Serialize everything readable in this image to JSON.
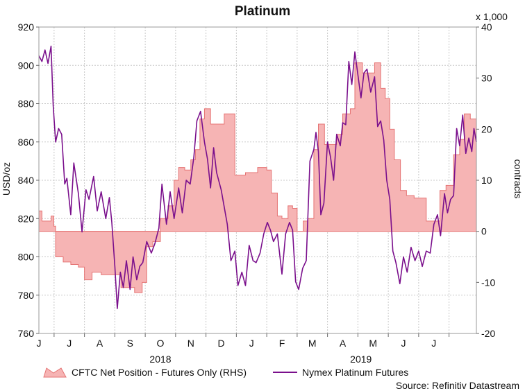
{
  "chart_data": {
    "type": "area+line",
    "title": "Platinum",
    "ylabel_left": "USD/oz",
    "ylabel_right": "contracts",
    "right_axis_multiplier": "x 1,000",
    "source": "Source: Refinitiv Datastream",
    "left_axis": {
      "min": 760,
      "max": 920,
      "ticks": [
        760,
        780,
        800,
        820,
        840,
        860,
        880,
        900,
        920
      ]
    },
    "right_axis": {
      "min": -20,
      "max": 40,
      "ticks": [
        -20,
        -10,
        0,
        10,
        20,
        30,
        40
      ]
    },
    "x_axis": {
      "start_month": 5.5,
      "end_month": 19.9,
      "month_labels": [
        {
          "m": 6,
          "label": "J"
        },
        {
          "m": 7,
          "label": "J"
        },
        {
          "m": 8,
          "label": "A"
        },
        {
          "m": 9,
          "label": "S"
        },
        {
          "m": 10,
          "label": "O"
        },
        {
          "m": 11,
          "label": "N"
        },
        {
          "m": 12,
          "label": "D"
        },
        {
          "m": 13,
          "label": "J"
        },
        {
          "m": 14,
          "label": "F"
        },
        {
          "m": 15,
          "label": "M"
        },
        {
          "m": 16,
          "label": "A"
        },
        {
          "m": 17,
          "label": "M"
        },
        {
          "m": 18,
          "label": "J"
        },
        {
          "m": 19,
          "label": "J"
        }
      ],
      "year_labels": [
        {
          "m": 9.5,
          "label": "2018"
        },
        {
          "m": 16.1,
          "label": "2019"
        }
      ]
    },
    "legend": [
      "CFTC Net Position - Futures Only (RHS)",
      "Nymex Platinum Futures"
    ],
    "colors": {
      "area_fill": "#f6b4b4",
      "area_stroke": "#e57373",
      "line": "#7a0f8c"
    },
    "series": [
      {
        "name": "CFTC Net Position - Futures Only (RHS)",
        "axis": "right",
        "units": "thousand contracts",
        "points": [
          [
            5.5,
            4
          ],
          [
            5.6,
            2
          ],
          [
            5.75,
            2
          ],
          [
            5.9,
            3
          ],
          [
            5.99,
            1
          ],
          [
            6.05,
            -5
          ],
          [
            6.3,
            -6
          ],
          [
            6.55,
            -6.5
          ],
          [
            6.8,
            -7
          ],
          [
            7.0,
            -9.5
          ],
          [
            7.25,
            -8
          ],
          [
            7.4,
            -8
          ],
          [
            7.55,
            -8.5
          ],
          [
            7.8,
            -8.5
          ],
          [
            8.0,
            -8.5
          ],
          [
            8.2,
            -11
          ],
          [
            8.45,
            -11
          ],
          [
            8.65,
            -12
          ],
          [
            8.9,
            -10
          ],
          [
            9.05,
            -3
          ],
          [
            9.25,
            -2
          ],
          [
            9.5,
            2.5
          ],
          [
            9.75,
            5
          ],
          [
            9.95,
            10
          ],
          [
            10.1,
            12.5
          ],
          [
            10.3,
            12
          ],
          [
            10.5,
            14
          ],
          [
            10.65,
            16
          ],
          [
            10.8,
            22
          ],
          [
            10.95,
            24
          ],
          [
            11.15,
            21
          ],
          [
            11.4,
            21
          ],
          [
            11.6,
            23
          ],
          [
            11.8,
            23
          ],
          [
            11.95,
            11
          ],
          [
            12.15,
            11
          ],
          [
            12.3,
            11.5
          ],
          [
            12.5,
            11.5
          ],
          [
            12.7,
            12.5
          ],
          [
            12.85,
            12.5
          ],
          [
            13.0,
            12
          ],
          [
            13.15,
            7.5
          ],
          [
            13.35,
            3
          ],
          [
            13.5,
            2.5
          ],
          [
            13.7,
            5
          ],
          [
            13.85,
            4.5
          ],
          [
            14.0,
            0
          ],
          [
            14.2,
            2
          ],
          [
            14.35,
            2.5
          ],
          [
            14.55,
            16
          ],
          [
            14.7,
            21
          ],
          [
            14.9,
            17
          ],
          [
            15.1,
            17
          ],
          [
            15.3,
            19
          ],
          [
            15.5,
            23
          ],
          [
            15.75,
            24
          ],
          [
            15.9,
            33
          ],
          [
            16.15,
            31
          ],
          [
            16.4,
            31
          ],
          [
            16.55,
            33
          ],
          [
            16.75,
            28
          ],
          [
            16.9,
            26
          ],
          [
            17.05,
            20
          ],
          [
            17.2,
            14
          ],
          [
            17.4,
            8
          ],
          [
            17.6,
            7
          ],
          [
            17.85,
            6.5
          ],
          [
            18.05,
            6.5
          ],
          [
            18.25,
            2
          ],
          [
            18.5,
            2
          ],
          [
            18.7,
            8
          ],
          [
            18.9,
            9
          ],
          [
            19.15,
            15
          ],
          [
            19.35,
            18
          ],
          [
            19.5,
            23
          ],
          [
            19.7,
            22
          ],
          [
            19.9,
            21
          ]
        ]
      },
      {
        "name": "Nymex Platinum Futures",
        "axis": "left",
        "units": "USD/oz",
        "points": [
          [
            5.5,
            905
          ],
          [
            5.6,
            902
          ],
          [
            5.7,
            908
          ],
          [
            5.8,
            901
          ],
          [
            5.9,
            910
          ],
          [
            5.97,
            879
          ],
          [
            6.05,
            860
          ],
          [
            6.15,
            867
          ],
          [
            6.25,
            864
          ],
          [
            6.35,
            838
          ],
          [
            6.42,
            841
          ],
          [
            6.55,
            822
          ],
          [
            6.65,
            849
          ],
          [
            6.8,
            833
          ],
          [
            6.92,
            813
          ],
          [
            7.05,
            835
          ],
          [
            7.15,
            830
          ],
          [
            7.3,
            842
          ],
          [
            7.42,
            824
          ],
          [
            7.55,
            834
          ],
          [
            7.7,
            820
          ],
          [
            7.82,
            831
          ],
          [
            7.9,
            818
          ],
          [
            8.0,
            795
          ],
          [
            8.08,
            773
          ],
          [
            8.18,
            792
          ],
          [
            8.28,
            784
          ],
          [
            8.38,
            798
          ],
          [
            8.5,
            783
          ],
          [
            8.6,
            800
          ],
          [
            8.72,
            788
          ],
          [
            8.82,
            795
          ],
          [
            8.92,
            797
          ],
          [
            9.05,
            808
          ],
          [
            9.2,
            802
          ],
          [
            9.32,
            807
          ],
          [
            9.45,
            815
          ],
          [
            9.55,
            838
          ],
          [
            9.7,
            817
          ],
          [
            9.82,
            834
          ],
          [
            9.95,
            820
          ],
          [
            10.1,
            836
          ],
          [
            10.22,
            823
          ],
          [
            10.35,
            840
          ],
          [
            10.48,
            838
          ],
          [
            10.6,
            852
          ],
          [
            10.7,
            871
          ],
          [
            10.82,
            876
          ],
          [
            10.95,
            860
          ],
          [
            11.05,
            851
          ],
          [
            11.15,
            836
          ],
          [
            11.25,
            857
          ],
          [
            11.35,
            844
          ],
          [
            11.5,
            835
          ],
          [
            11.6,
            826
          ],
          [
            11.7,
            817
          ],
          [
            11.82,
            798
          ],
          [
            11.95,
            803
          ],
          [
            12.05,
            785
          ],
          [
            12.18,
            792
          ],
          [
            12.3,
            785
          ],
          [
            12.42,
            806
          ],
          [
            12.55,
            798
          ],
          [
            12.65,
            797
          ],
          [
            12.78,
            802
          ],
          [
            12.9,
            812
          ],
          [
            13.02,
            818
          ],
          [
            13.12,
            814
          ],
          [
            13.22,
            808
          ],
          [
            13.35,
            812
          ],
          [
            13.5,
            791
          ],
          [
            13.62,
            812
          ],
          [
            13.75,
            818
          ],
          [
            13.85,
            814
          ],
          [
            13.95,
            787
          ],
          [
            14.05,
            783
          ],
          [
            14.18,
            794
          ],
          [
            14.3,
            798
          ],
          [
            14.42,
            850
          ],
          [
            14.55,
            856
          ],
          [
            14.62,
            865
          ],
          [
            14.7,
            855
          ],
          [
            14.78,
            822
          ],
          [
            14.88,
            828
          ],
          [
            15.0,
            860
          ],
          [
            15.1,
            852
          ],
          [
            15.2,
            840
          ],
          [
            15.3,
            864
          ],
          [
            15.42,
            858
          ],
          [
            15.5,
            870
          ],
          [
            15.6,
            869
          ],
          [
            15.7,
            902
          ],
          [
            15.8,
            890
          ],
          [
            15.9,
            907
          ],
          [
            16.0,
            895
          ],
          [
            16.1,
            883
          ],
          [
            16.2,
            896
          ],
          [
            16.3,
            898
          ],
          [
            16.42,
            886
          ],
          [
            16.55,
            894
          ],
          [
            16.65,
            868
          ],
          [
            16.75,
            871
          ],
          [
            16.85,
            861
          ],
          [
            16.95,
            840
          ],
          [
            17.05,
            830
          ],
          [
            17.15,
            803
          ],
          [
            17.25,
            797
          ],
          [
            17.38,
            786
          ],
          [
            17.5,
            800
          ],
          [
            17.62,
            792
          ],
          [
            17.75,
            805
          ],
          [
            17.88,
            798
          ],
          [
            18.0,
            803
          ],
          [
            18.12,
            795
          ],
          [
            18.25,
            803
          ],
          [
            18.38,
            802
          ],
          [
            18.5,
            817
          ],
          [
            18.62,
            822
          ],
          [
            18.72,
            811
          ],
          [
            18.85,
            833
          ],
          [
            18.95,
            823
          ],
          [
            19.05,
            830
          ],
          [
            19.15,
            832
          ],
          [
            19.25,
            867
          ],
          [
            19.35,
            858
          ],
          [
            19.45,
            874
          ],
          [
            19.55,
            854
          ],
          [
            19.65,
            862
          ],
          [
            19.75,
            855
          ],
          [
            19.82,
            867
          ],
          [
            19.9,
            860
          ]
        ]
      }
    ]
  }
}
